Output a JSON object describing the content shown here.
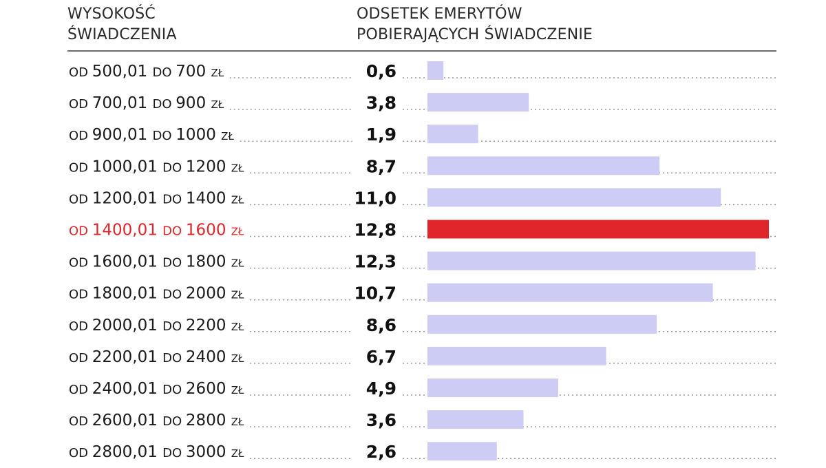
{
  "header": {
    "left_line1": "WYSOKOŚĆ",
    "left_line2": "ŚWIADCZENIA",
    "right_line1": "ODSETEK EMERYTÓW",
    "right_line2": "POBIERAJĄCYCH ŚWIADCZENIE"
  },
  "chart_data": {
    "type": "bar",
    "orientation": "horizontal",
    "title": "",
    "xlabel": "ODSETEK EMERYTÓW POBIERAJĄCYCH ŚWIADCZENIE",
    "ylabel": "WYSOKOŚĆ ŚWIADCZENIA",
    "range_prefix": "OD",
    "range_connector": "DO",
    "range_unit": "ZŁ",
    "categories": [
      {
        "from": "500,01",
        "to": "700"
      },
      {
        "from": "700,01",
        "to": "900"
      },
      {
        "from": "900,01",
        "to": "1000"
      },
      {
        "from": "1000,01",
        "to": "1200"
      },
      {
        "from": "1200,01",
        "to": "1400"
      },
      {
        "from": "1400,01",
        "to": "1600"
      },
      {
        "from": "1600,01",
        "to": "1800"
      },
      {
        "from": "1800,01",
        "to": "2000"
      },
      {
        "from": "2000,01",
        "to": "2200"
      },
      {
        "from": "2200,01",
        "to": "2400"
      },
      {
        "from": "2400,01",
        "to": "2600"
      },
      {
        "from": "2600,01",
        "to": "2800"
      },
      {
        "from": "2800,01",
        "to": "3000"
      }
    ],
    "values": [
      0.6,
      3.8,
      1.9,
      8.7,
      11.0,
      12.8,
      12.3,
      10.7,
      8.6,
      6.7,
      4.9,
      3.6,
      2.6
    ],
    "value_labels": [
      "0,6",
      "3,8",
      "1,9",
      "8,7",
      "11,0",
      "12,8",
      "12,3",
      "10,7",
      "8,6",
      "6,7",
      "4,9",
      "3,6",
      "2,6"
    ],
    "highlight_index": 5,
    "xlim": [
      0,
      12.8
    ],
    "grid": false,
    "legend": "none",
    "colors": {
      "bar": "#ccccf4",
      "highlight_bar": "#e0262a",
      "highlight_text": "#e0262a",
      "text": "#1a1a1a"
    }
  }
}
